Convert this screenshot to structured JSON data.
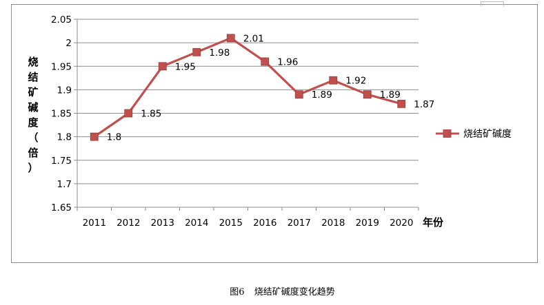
{
  "chart_data": {
    "type": "line",
    "title": "",
    "xlabel": "年份",
    "ylabel": "烧结矿碱度（倍）",
    "ylabel_chars": [
      "烧",
      "结",
      "矿",
      "碱",
      "度",
      "（",
      "倍",
      "）"
    ],
    "categories": [
      "2011",
      "2012",
      "2013",
      "2014",
      "2015",
      "2016",
      "2017",
      "2018",
      "2019",
      "2020"
    ],
    "series": [
      {
        "name": "烧结矿碱度",
        "values": [
          1.8,
          1.85,
          1.95,
          1.98,
          2.01,
          1.96,
          1.89,
          1.92,
          1.89,
          1.87
        ],
        "labels": [
          "1.8",
          "1.85",
          "1.95",
          "1.98",
          "2.01",
          "1.96",
          "1.89",
          "1.92",
          "1.89",
          "1.87"
        ],
        "color": "#c0504d"
      }
    ],
    "ylim": [
      1.65,
      2.05
    ],
    "yticks": [
      "1.65",
      "1.7",
      "1.75",
      "1.8",
      "1.85",
      "1.9",
      "1.95",
      "2",
      "2.05"
    ],
    "grid": true,
    "legend_position": "right"
  },
  "caption": {
    "figure_number": "图6",
    "text": "烧结矿碱度变化趋势"
  },
  "colors": {
    "series": "#c0504d",
    "gridline": "#8c8c8c",
    "axis": "#8c8c8c",
    "frame": "#8c8c8c"
  }
}
